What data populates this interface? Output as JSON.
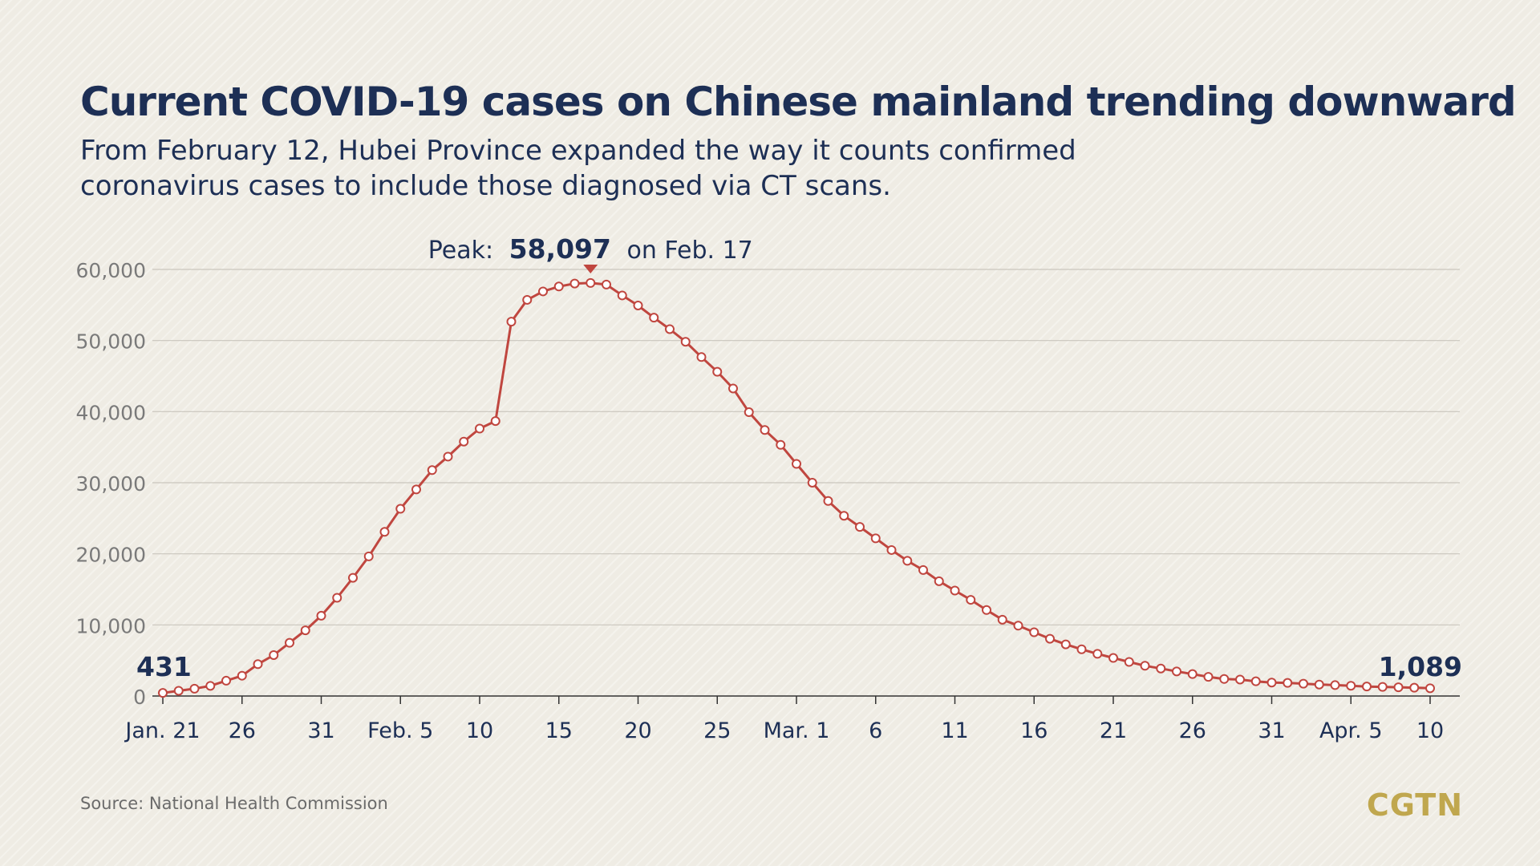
{
  "title": "Current COVID-19 cases on Chinese mainland trending downward",
  "subtitle_lines": [
    "From February 12, Hubei Province expanded the way it counts confirmed",
    "coronavirus cases to include those diagnosed via CT scans."
  ],
  "source": "Source: National Health Commission",
  "logo": "CGTN",
  "colors": {
    "line": "#c0463f",
    "title": "#1d2f55",
    "axis_text": "#7a7a7a",
    "logo": "#c0a74e",
    "grid": "#c9c6bd"
  },
  "chart_data": {
    "type": "line",
    "y_ticks": [
      "0",
      "10,000",
      "20,000",
      "30,000",
      "40,000",
      "50,000",
      "60,000"
    ],
    "ylim": [
      0,
      60000
    ],
    "x_ticks": [
      "Jan. 21",
      "26",
      "31",
      "Feb. 5",
      "10",
      "15",
      "20",
      "25",
      "Mar. 1",
      "6",
      "11",
      "16",
      "21",
      "26",
      "31",
      "Apr. 5",
      "10"
    ],
    "x_start": "Jan. 21",
    "x_end": "Apr. 10",
    "values": [
      431,
      735,
      1028,
      1427,
      2150,
      2854,
      4483,
      5755,
      7484,
      9239,
      11289,
      13815,
      16626,
      19637,
      23089,
      26329,
      29051,
      31774,
      33672,
      35786,
      37611,
      38676,
      52652,
      55721,
      56905,
      57601,
      58016,
      58097,
      57872,
      56341,
      54928,
      53216,
      51600,
      49824,
      47672,
      45604,
      43258,
      39919,
      37414,
      35329,
      32652,
      30004,
      27433,
      25352,
      23784,
      22177,
      20533,
      19016,
      17721,
      16145,
      14831,
      13526,
      12094,
      10734,
      9898,
      8967,
      8056,
      7263,
      6569,
      5934,
      5353,
      4794,
      4257,
      3866,
      3460,
      3084,
      2691,
      2396,
      2316,
      2069,
      1893,
      1845,
      1734,
      1610,
      1530,
      1443,
      1334,
      1283,
      1226,
      1168,
      1089
    ],
    "start_label": "431",
    "end_label": "1,089",
    "peak": {
      "label_prefix": "Peak:",
      "value_text": "58,097",
      "label_suffix": "on Feb. 17",
      "index": 27
    }
  }
}
